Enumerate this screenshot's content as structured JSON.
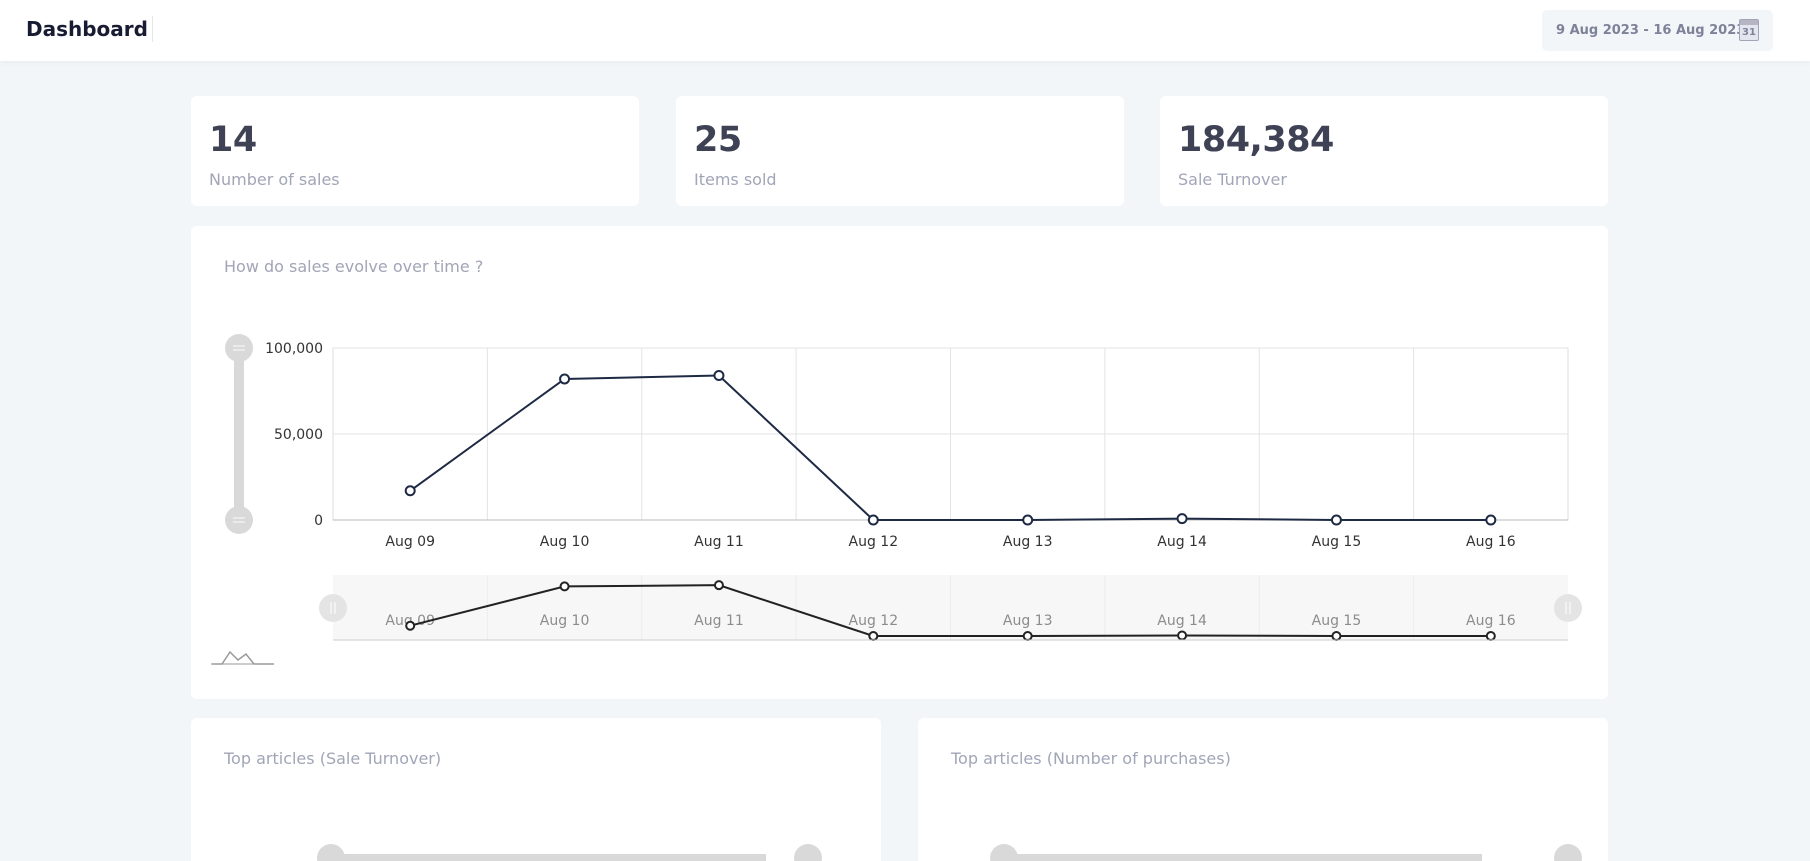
{
  "header": {
    "title": "Dashboard",
    "date_range": "9 Aug 2023 - 16 Aug 2023",
    "calendar_day": "31"
  },
  "stats": [
    {
      "value": "14",
      "label": "Number of sales"
    },
    {
      "value": "25",
      "label": "Items sold"
    },
    {
      "value": "184,384",
      "label": "Sale Turnover"
    }
  ],
  "sales_chart": {
    "title": "How do sales evolve over time ?"
  },
  "chart_data": {
    "type": "line",
    "x": [
      "Aug 09",
      "Aug 10",
      "Aug 11",
      "Aug 12",
      "Aug 13",
      "Aug 14",
      "Aug 15",
      "Aug 16"
    ],
    "series": [
      {
        "values": [
          17000,
          82000,
          84000,
          0,
          0,
          800,
          0,
          0
        ]
      }
    ],
    "yticks": [
      "0",
      "50,000",
      "100,000"
    ],
    "ylim": [
      0,
      100000
    ],
    "grid": true,
    "line_color": "#1e2a44"
  },
  "bottom_cards": [
    {
      "title": "Top articles (Sale Turnover)"
    },
    {
      "title": "Top articles (Number of purchases)"
    }
  ]
}
